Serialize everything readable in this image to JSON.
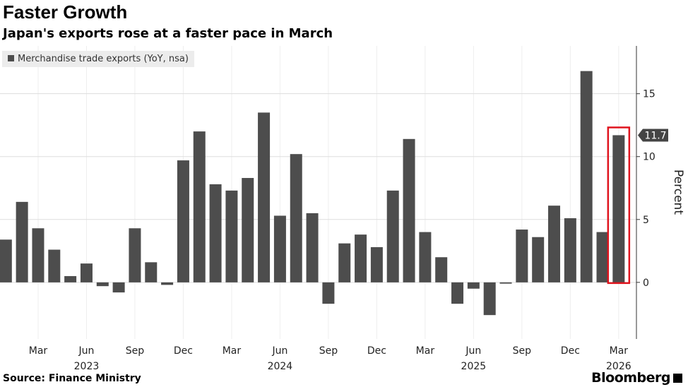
{
  "chart_data": {
    "type": "bar",
    "title": "Faster Growth",
    "subtitle": "Japan's exports rose at a faster pace in March",
    "legend": "Merchandise trade exports (YoY, nsa)",
    "ylabel": "Percent",
    "ylim": [
      -4.5,
      18.8
    ],
    "yticks": [
      0,
      5,
      10,
      15
    ],
    "categories": [
      "Jan 2023",
      "Feb 2023",
      "Mar 2023",
      "Apr 2023",
      "May 2023",
      "Jun 2023",
      "Jul 2023",
      "Aug 2023",
      "Sep 2023",
      "Oct 2023",
      "Nov 2023",
      "Dec 2023",
      "Jan 2024",
      "Feb 2024",
      "Mar 2024",
      "Apr 2024",
      "May 2024",
      "Jun 2024",
      "Jul 2024",
      "Aug 2024",
      "Sep 2024",
      "Oct 2024",
      "Nov 2024",
      "Dec 2024",
      "Jan 2025",
      "Feb 2025",
      "Mar 2025",
      "Apr 2025",
      "May 2025",
      "Jun 2025",
      "Jul 2025",
      "Aug 2025",
      "Sep 2025",
      "Oct 2025",
      "Nov 2025",
      "Dec 2025",
      "Jan 2026",
      "Feb 2026",
      "Mar 2026"
    ],
    "values": [
      3.4,
      6.4,
      4.3,
      2.6,
      0.5,
      1.5,
      -0.3,
      -0.8,
      4.3,
      1.6,
      -0.2,
      9.7,
      12.0,
      7.8,
      7.3,
      8.3,
      13.5,
      5.3,
      10.2,
      5.5,
      -1.7,
      3.1,
      3.8,
      2.8,
      7.3,
      11.4,
      4.0,
      2.0,
      -1.7,
      -0.5,
      -2.6,
      -0.1,
      4.2,
      3.6,
      6.1,
      5.1,
      16.8,
      4.0,
      11.7
    ],
    "xtick_labels": [
      {
        "index": 2,
        "label": "Mar"
      },
      {
        "index": 5,
        "label": "Jun"
      },
      {
        "index": 8,
        "label": "Sep"
      },
      {
        "index": 11,
        "label": "Dec"
      },
      {
        "index": 14,
        "label": "Mar"
      },
      {
        "index": 17,
        "label": "Jun"
      },
      {
        "index": 20,
        "label": "Sep"
      },
      {
        "index": 23,
        "label": "Dec"
      },
      {
        "index": 26,
        "label": "Mar"
      },
      {
        "index": 29,
        "label": "Jun"
      },
      {
        "index": 32,
        "label": "Sep"
      },
      {
        "index": 35,
        "label": "Dec"
      },
      {
        "index": 38,
        "label": "Mar"
      }
    ],
    "year_labels": [
      {
        "index": 5,
        "label": "2023"
      },
      {
        "index": 17,
        "label": "2024"
      },
      {
        "index": 29,
        "label": "2025"
      },
      {
        "index": 38,
        "label": "2026"
      }
    ],
    "annotation": {
      "index": 38,
      "label": "11.7"
    },
    "colors": {
      "bar": "#4d4d4d",
      "highlight": "#e0141e",
      "grid": "#dddddd"
    }
  },
  "source": "Source: Finance Ministry",
  "brand": "Bloomberg"
}
